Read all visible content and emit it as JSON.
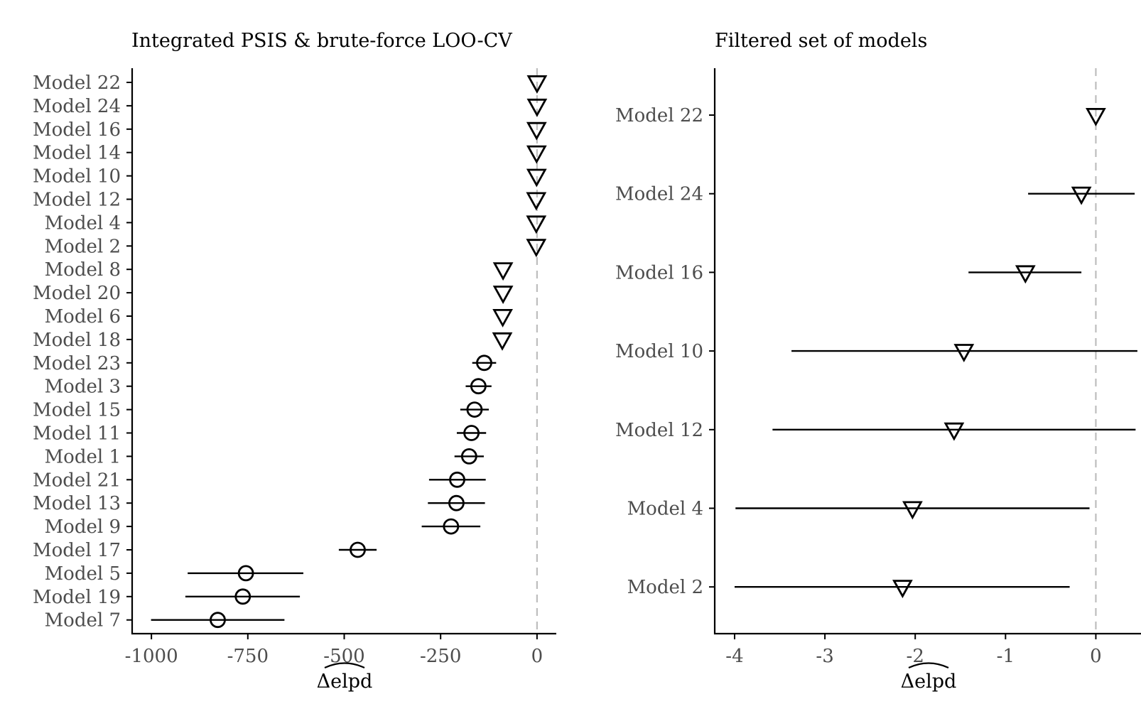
{
  "chart_data": [
    {
      "type": "scatter",
      "title": "Integrated PSIS & brute-force LOO-CV",
      "xlabel": "Δelpd",
      "ylabel": "",
      "xlim": [
        -1050,
        50
      ],
      "xticks": [
        "-1000",
        "-750",
        "-500",
        "-250",
        "0"
      ],
      "xtick_values": [
        -1000,
        -750,
        -500,
        -250,
        0
      ],
      "reference_line_x": 0,
      "points": [
        {
          "label": "Model 22",
          "value": 0,
          "lower": 0,
          "upper": 0,
          "marker": "triangle"
        },
        {
          "label": "Model 24",
          "value": 0,
          "lower": 0,
          "upper": 0,
          "marker": "triangle"
        },
        {
          "label": "Model 16",
          "value": -1,
          "lower": -1,
          "upper": -1,
          "marker": "triangle"
        },
        {
          "label": "Model 14",
          "value": -1,
          "lower": -1,
          "upper": -1,
          "marker": "triangle"
        },
        {
          "label": "Model 10",
          "value": -1,
          "lower": -1,
          "upper": -1,
          "marker": "triangle"
        },
        {
          "label": "Model 12",
          "value": -2,
          "lower": -2,
          "upper": -2,
          "marker": "triangle"
        },
        {
          "label": "Model 4",
          "value": -2,
          "lower": -2,
          "upper": -2,
          "marker": "triangle"
        },
        {
          "label": "Model 2",
          "value": -2,
          "lower": -2,
          "upper": -2,
          "marker": "triangle"
        },
        {
          "label": "Model 8",
          "value": -88,
          "lower": -88,
          "upper": -88,
          "marker": "triangle"
        },
        {
          "label": "Model 20",
          "value": -88,
          "lower": -88,
          "upper": -88,
          "marker": "triangle"
        },
        {
          "label": "Model 6",
          "value": -89,
          "lower": -89,
          "upper": -89,
          "marker": "triangle"
        },
        {
          "label": "Model 18",
          "value": -90,
          "lower": -90,
          "upper": -90,
          "marker": "triangle"
        },
        {
          "label": "Model 23",
          "value": -137,
          "lower": -168,
          "upper": -106,
          "marker": "circle"
        },
        {
          "label": "Model 3",
          "value": -152,
          "lower": -185,
          "upper": -118,
          "marker": "circle"
        },
        {
          "label": "Model 15",
          "value": -162,
          "lower": -199,
          "upper": -125,
          "marker": "circle"
        },
        {
          "label": "Model 11",
          "value": -170,
          "lower": -208,
          "upper": -132,
          "marker": "circle"
        },
        {
          "label": "Model 1",
          "value": -176,
          "lower": -214,
          "upper": -138,
          "marker": "circle"
        },
        {
          "label": "Model 21",
          "value": -207,
          "lower": -280,
          "upper": -133,
          "marker": "circle"
        },
        {
          "label": "Model 13",
          "value": -209,
          "lower": -283,
          "upper": -135,
          "marker": "circle"
        },
        {
          "label": "Model 9",
          "value": -223,
          "lower": -299,
          "upper": -147,
          "marker": "circle"
        },
        {
          "label": "Model 17",
          "value": -465,
          "lower": -514,
          "upper": -416,
          "marker": "circle"
        },
        {
          "label": "Model 5",
          "value": -755,
          "lower": -906,
          "upper": -606,
          "marker": "circle"
        },
        {
          "label": "Model 19",
          "value": -763,
          "lower": -912,
          "upper": -615,
          "marker": "circle"
        },
        {
          "label": "Model 7",
          "value": -828,
          "lower": -1001,
          "upper": -655,
          "marker": "circle"
        }
      ]
    },
    {
      "type": "scatter",
      "title": "Filtered set of models",
      "xlabel": "Δelpd",
      "ylabel": "",
      "xlim": [
        -4.22,
        0.5
      ],
      "xticks": [
        "-4",
        "-3",
        "-2",
        "-1",
        "0"
      ],
      "xtick_values": [
        -4,
        -3,
        -2,
        -1,
        0
      ],
      "reference_line_x": 0,
      "points": [
        {
          "label": "Model 22",
          "value": 0,
          "lower": 0,
          "upper": 0,
          "marker": "triangle"
        },
        {
          "label": "Model 24",
          "value": -0.16,
          "lower": -0.75,
          "upper": 0.43,
          "marker": "triangle"
        },
        {
          "label": "Model 16",
          "value": -0.78,
          "lower": -1.41,
          "upper": -0.16,
          "marker": "triangle"
        },
        {
          "label": "Model 10",
          "value": -1.46,
          "lower": -3.37,
          "upper": 0.46,
          "marker": "triangle"
        },
        {
          "label": "Model 12",
          "value": -1.57,
          "lower": -3.58,
          "upper": 0.44,
          "marker": "triangle"
        },
        {
          "label": "Model 4",
          "value": -2.03,
          "lower": -3.99,
          "upper": -0.07,
          "marker": "triangle"
        },
        {
          "label": "Model 2",
          "value": -2.14,
          "lower": -4.0,
          "upper": -0.29,
          "marker": "triangle"
        }
      ]
    }
  ]
}
